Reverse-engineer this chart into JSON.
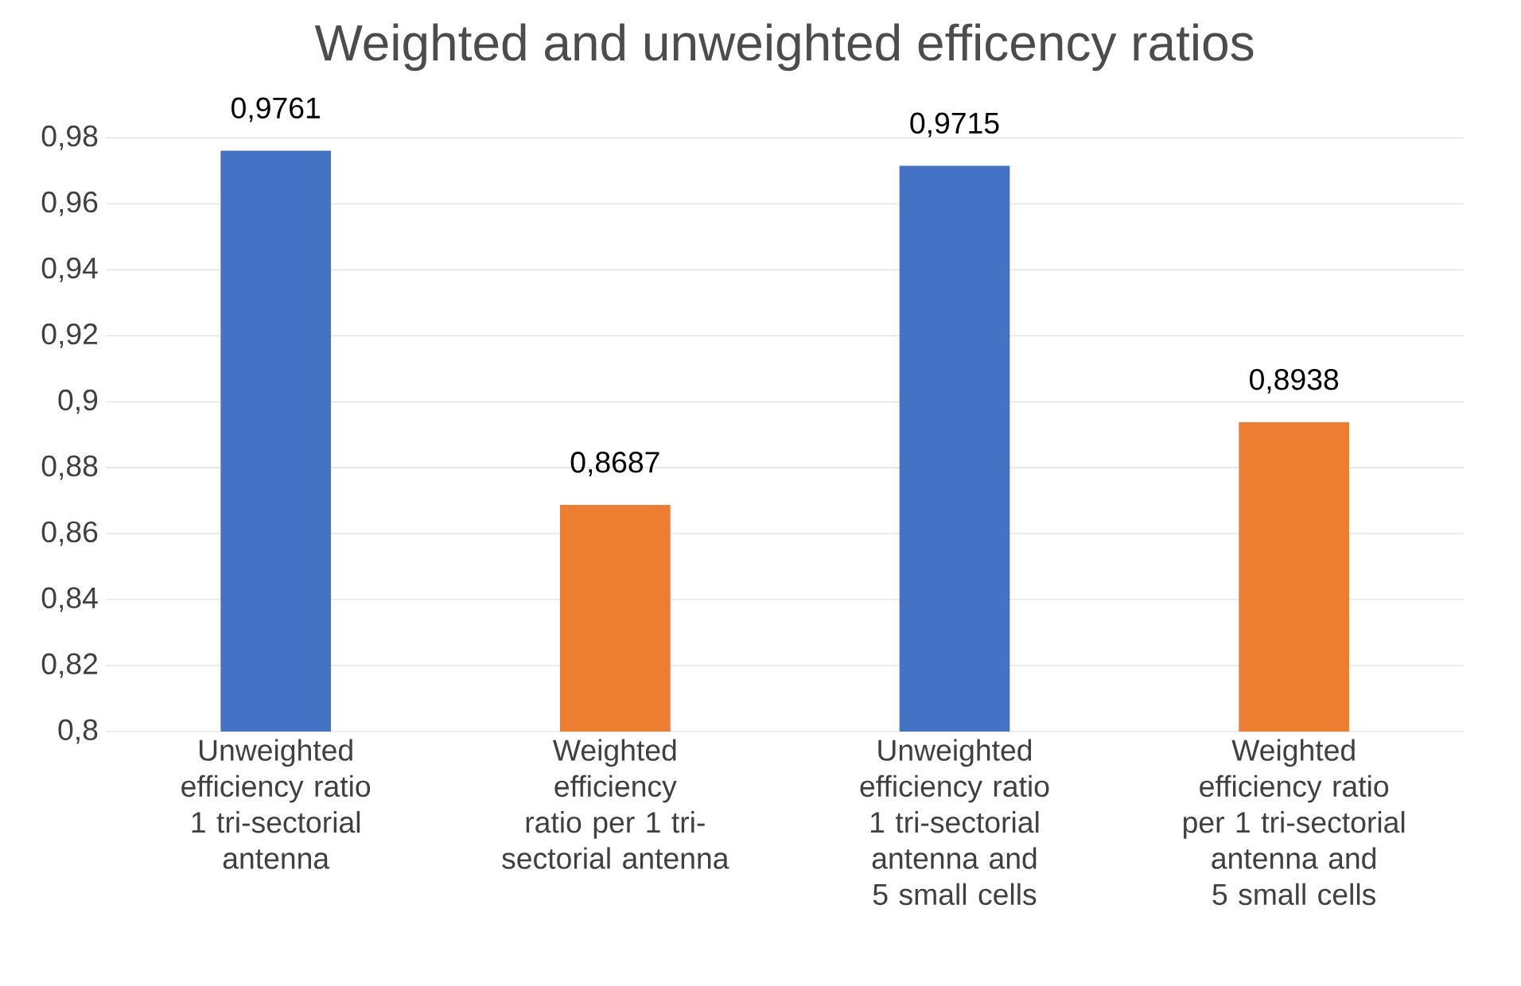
{
  "chart_data": {
    "type": "bar",
    "title": "Weighted and unweighted efficency ratios",
    "categories": [
      "Unweighted efficiency ratio 1 tri-sectorial antenna",
      "Weighted efficiency ratio per 1 tri-sectorial antenna",
      "Unweighted efficiency ratio 1 tri-sectorial antenna and 5 small cells",
      "Weighted efficiency ratio per 1 tri-sectorial antenna and 5 small cells"
    ],
    "values": [
      0.9761,
      0.8687,
      0.9715,
      0.8938
    ],
    "value_labels": [
      "0,9761",
      "0,8687",
      "0,9715",
      "0,8938"
    ],
    "colors": [
      "#4472c4",
      "#ed7d31",
      "#4472c4",
      "#ed7d31"
    ],
    "ylim": [
      0.8,
      0.98
    ],
    "yticks": [
      {
        "value": 0.8,
        "label": "0,8"
      },
      {
        "value": 0.82,
        "label": "0,82"
      },
      {
        "value": 0.84,
        "label": "0,84"
      },
      {
        "value": 0.86,
        "label": "0,86"
      },
      {
        "value": 0.88,
        "label": "0,88"
      },
      {
        "value": 0.9,
        "label": "0,9"
      },
      {
        "value": 0.92,
        "label": "0,92"
      },
      {
        "value": 0.94,
        "label": "0,94"
      },
      {
        "value": 0.96,
        "label": "0,96"
      },
      {
        "value": 0.98,
        "label": "0,98"
      }
    ],
    "grid": "y"
  }
}
